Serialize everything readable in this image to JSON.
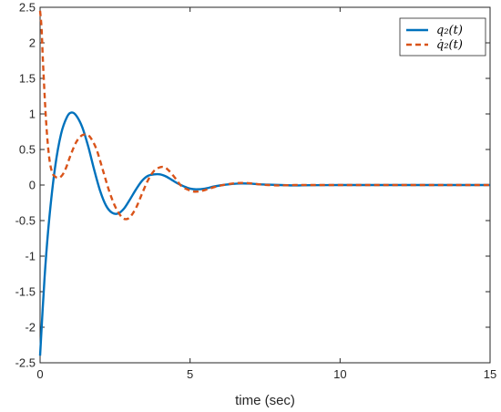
{
  "chart_data": {
    "type": "line",
    "title": "",
    "xlabel": "time (sec)",
    "ylabel": "",
    "xlim": [
      0,
      15
    ],
    "ylim": [
      -2.5,
      2.5
    ],
    "xticks": [
      0,
      5,
      10,
      15
    ],
    "yticks": [
      -2.5,
      -2,
      -1.5,
      -1,
      -0.5,
      0,
      0.5,
      1,
      1.5,
      2,
      2.5
    ],
    "xtick_labels": [
      "0",
      "5",
      "10",
      "15"
    ],
    "ytick_labels": [
      "-2.5",
      "-2",
      "-1.5",
      "-1",
      "-0.5",
      "0",
      "0.5",
      "1",
      "1.5",
      "2",
      "2.5"
    ],
    "grid": false,
    "legend_position": "top-right",
    "series": [
      {
        "name": "q₂(t)",
        "color": "#0072BD",
        "style": "solid",
        "x": [
          0,
          0.15,
          0.3,
          0.5,
          0.7,
          0.9,
          1.05,
          1.2,
          1.4,
          1.6,
          1.8,
          2.0,
          2.2,
          2.4,
          2.6,
          2.8,
          3.0,
          3.2,
          3.4,
          3.6,
          3.8,
          4.0,
          4.2,
          4.4,
          4.6,
          4.8,
          5.0,
          5.2,
          5.5,
          5.8,
          6.1,
          6.4,
          6.7,
          7.0,
          7.3,
          7.6,
          8.0,
          8.5,
          9.0,
          10.0,
          11.0,
          12.0,
          13.0,
          14.0,
          15.0
        ],
        "y": [
          -2.4,
          -1.3,
          -0.5,
          0.25,
          0.72,
          0.96,
          1.02,
          0.98,
          0.82,
          0.55,
          0.22,
          -0.08,
          -0.29,
          -0.39,
          -0.4,
          -0.33,
          -0.2,
          -0.06,
          0.06,
          0.13,
          0.15,
          0.15,
          0.12,
          0.07,
          0.02,
          -0.02,
          -0.05,
          -0.06,
          -0.05,
          -0.02,
          0.0,
          0.015,
          0.022,
          0.02,
          0.01,
          0.005,
          0.0,
          -0.005,
          -0.002,
          0.0,
          0.0,
          0.0,
          0.0,
          0.0,
          0.0
        ]
      },
      {
        "name": "q̇₂(t)",
        "color": "#D95319",
        "style": "dashed",
        "x": [
          0,
          0.05,
          0.1,
          0.2,
          0.3,
          0.4,
          0.5,
          0.6,
          0.7,
          0.8,
          0.9,
          1.0,
          1.2,
          1.4,
          1.6,
          1.75,
          1.9,
          2.1,
          2.3,
          2.5,
          2.7,
          2.85,
          3.0,
          3.2,
          3.4,
          3.6,
          3.8,
          4.0,
          4.15,
          4.3,
          4.5,
          4.7,
          4.9,
          5.1,
          5.3,
          5.5,
          5.8,
          6.1,
          6.4,
          6.7,
          7.0,
          7.3,
          7.6,
          8.0,
          8.5,
          9.0,
          10.0,
          11.0,
          12.0,
          13.0,
          14.0,
          15.0
        ],
        "y": [
          2.45,
          2.2,
          1.7,
          0.9,
          0.4,
          0.18,
          0.12,
          0.1,
          0.12,
          0.18,
          0.28,
          0.4,
          0.6,
          0.7,
          0.7,
          0.62,
          0.48,
          0.2,
          -0.08,
          -0.3,
          -0.44,
          -0.48,
          -0.45,
          -0.32,
          -0.12,
          0.07,
          0.2,
          0.25,
          0.25,
          0.2,
          0.1,
          -0.01,
          -0.06,
          -0.09,
          -0.09,
          -0.07,
          -0.03,
          0.0,
          0.02,
          0.03,
          0.025,
          0.01,
          0.0,
          -0.005,
          0.0,
          0.0,
          0.0,
          0.0,
          0.0,
          0.0,
          0.0,
          0.0
        ]
      }
    ]
  }
}
